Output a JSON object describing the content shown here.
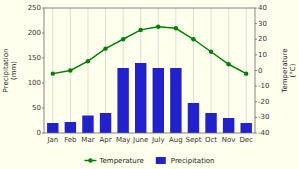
{
  "chart_data": {
    "type": "bar",
    "categories": [
      "Jan",
      "Feb",
      "Mar",
      "Apr",
      "May",
      "June",
      "July",
      "Aug",
      "Sept",
      "Oct",
      "Nov",
      "Dec"
    ],
    "series": [
      {
        "name": "Temperature",
        "type": "line",
        "axis": "y2",
        "color": "#008000",
        "marker": "circle",
        "values": [
          -2,
          0,
          6,
          14,
          20,
          26,
          28,
          27,
          20,
          12,
          4,
          -2
        ]
      },
      {
        "name": "Precipitation",
        "type": "bar",
        "color": "#2222cc",
        "values": [
          20,
          22,
          35,
          40,
          130,
          140,
          130,
          130,
          60,
          40,
          30,
          20
        ]
      }
    ],
    "ylim": [
      0,
      250
    ],
    "yticks": [
      0,
      50,
      100,
      150,
      200,
      250
    ],
    "y2lim": [
      -40,
      40
    ],
    "y2ticks": [
      -40,
      -30,
      -20,
      -10,
      0,
      10,
      20,
      30,
      40
    ],
    "ylabel": "Precipitation\n(mm)",
    "y2label": "Temperature\n(°C)",
    "grid": "x",
    "legend": "bottom",
    "color": "#ffffee"
  }
}
